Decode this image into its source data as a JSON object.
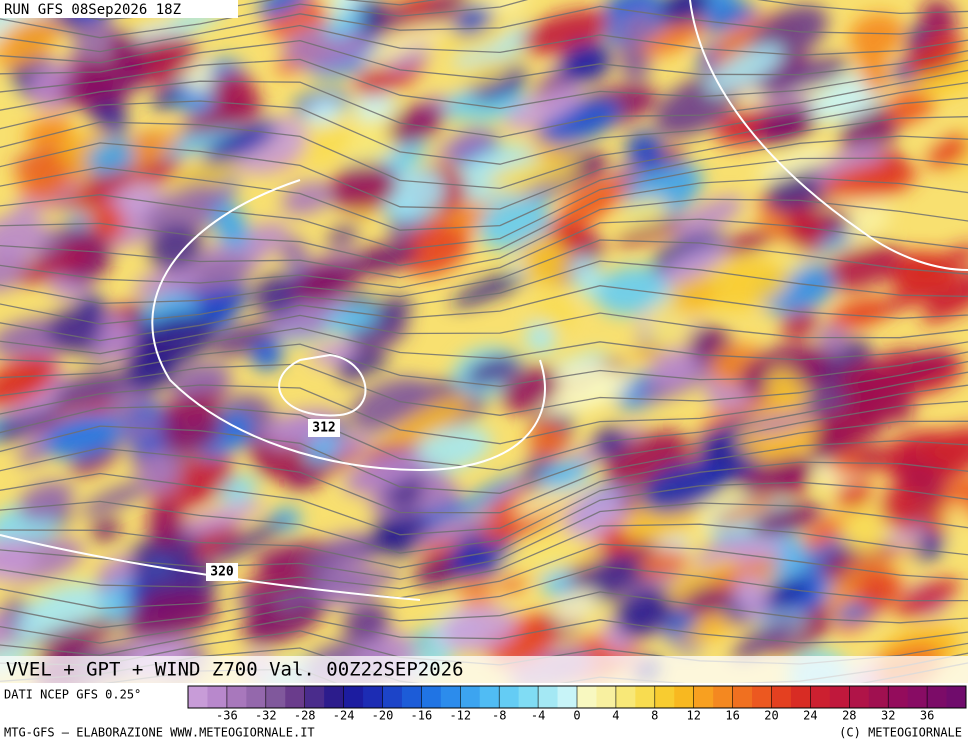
{
  "header": {
    "run": "RUN GFS 08Sep2026 18Z"
  },
  "map": {
    "contours": [
      {
        "label": "312"
      },
      {
        "label": "320"
      }
    ]
  },
  "footer": {
    "title": "VVEL + GPT + WIND Z700 Val. 00Z22SEP2026",
    "source": "DATI NCEP GFS 0.25°",
    "credit": "MTG-GFS – ELABORAZIONE WWW.METEOGIORNALE.IT",
    "copyright": "(C) METEOGIORNALE"
  },
  "colorbar": {
    "range": [
      -40,
      40
    ],
    "ticks": [
      -36,
      -32,
      -28,
      -24,
      -20,
      -16,
      -12,
      -8,
      -4,
      0,
      4,
      8,
      12,
      16,
      20,
      24,
      28,
      32,
      36
    ],
    "colors": [
      "#c89cd8",
      "#b888cc",
      "#a878bc",
      "#9468ac",
      "#80589c",
      "#6a3c8c",
      "#4a2c8c",
      "#2c1c8c",
      "#1c1ca0",
      "#1c2cb4",
      "#1c44c8",
      "#1c5cd8",
      "#2074e4",
      "#2c8cec",
      "#3ca4f0",
      "#50bcf4",
      "#64ccf4",
      "#80dcf4",
      "#a4e8f4",
      "#c8f4f8",
      "#f8f8c0",
      "#f8f0a0",
      "#f8e878",
      "#f8dc50",
      "#f8cc30",
      "#f8b820",
      "#f8a020",
      "#f48820",
      "#f07020",
      "#ec5820",
      "#e44020",
      "#d82c24",
      "#cc2030",
      "#c0183c",
      "#b01448",
      "#a01050",
      "#940c5c",
      "#880c64",
      "#7c0c68",
      "#700c6c"
    ]
  }
}
